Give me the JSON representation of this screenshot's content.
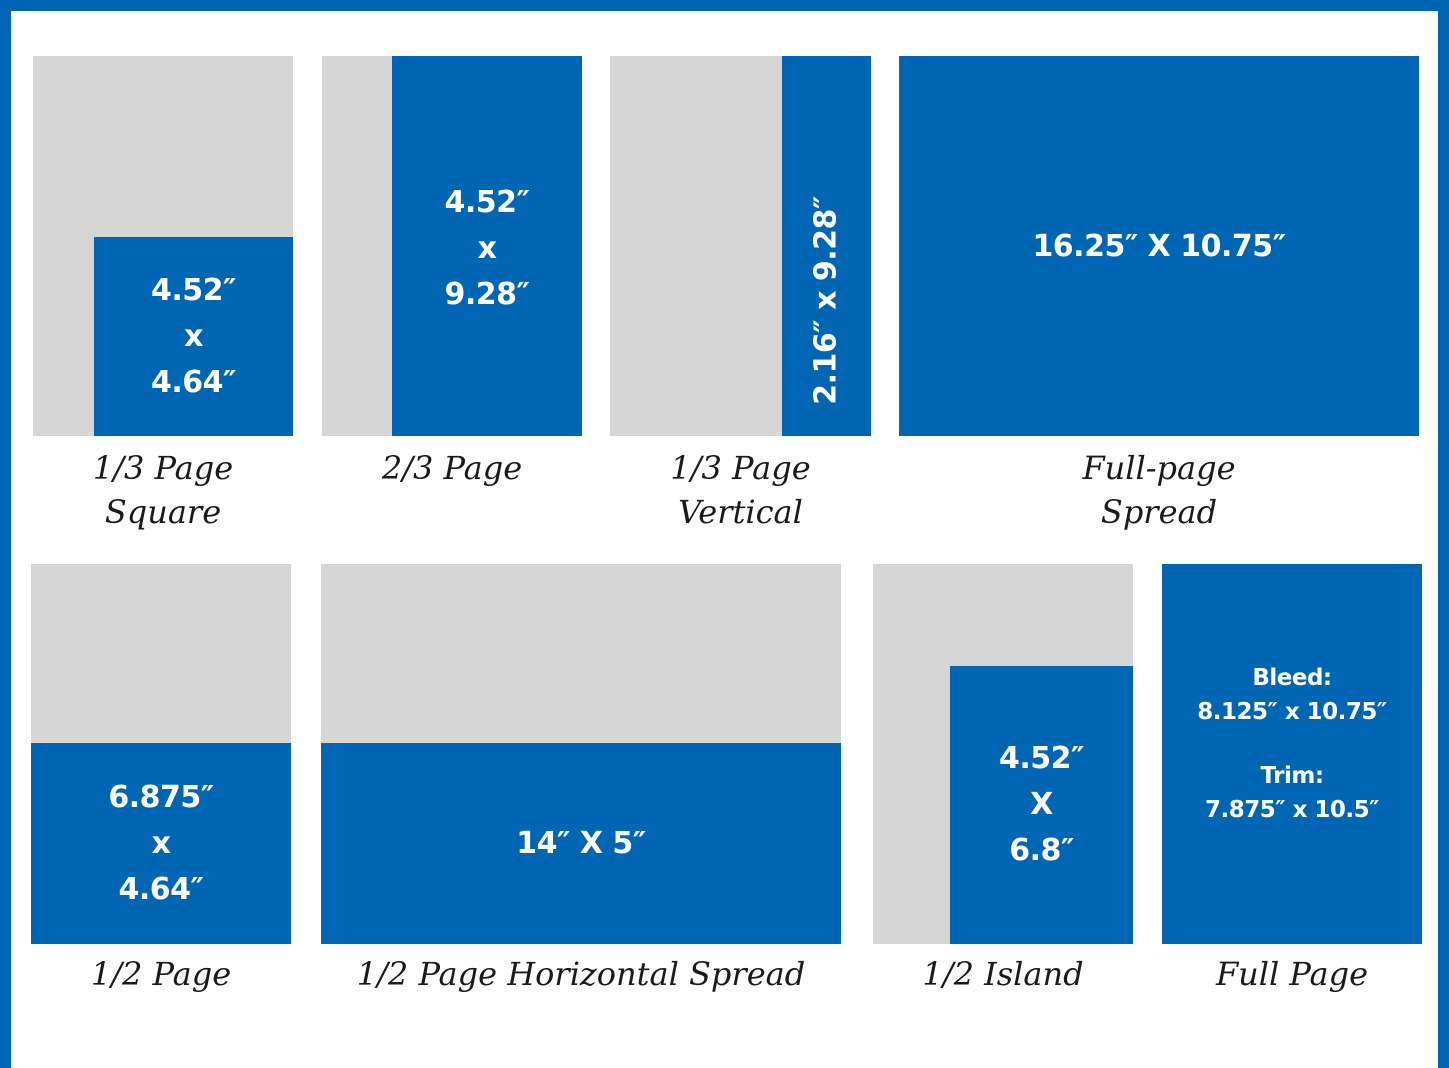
{
  "colors": {
    "accent": "#0066b3",
    "page": "#d6d6d6",
    "text": "#1a1a1a"
  },
  "ads": {
    "third_square": {
      "dim_w": "4.52″",
      "dim_x": "x",
      "dim_h": "4.64″",
      "caption_1": "1/3 Page",
      "caption_2": "Square"
    },
    "two_thirds": {
      "dim_w": "4.52″",
      "dim_x": "x",
      "dim_h": "9.28″",
      "caption_1": "2/3 Page"
    },
    "third_vertical": {
      "dim": "2.16″ x 9.28″",
      "caption_1": "1/3 Page",
      "caption_2": "Vertical"
    },
    "full_spread": {
      "dim": "16.25″ X 10.75″",
      "caption_1": "Full-page",
      "caption_2": "Spread"
    },
    "half_page": {
      "dim_w": "6.875″",
      "dim_x": "x",
      "dim_h": "4.64″",
      "caption_1": "1/2 Page"
    },
    "half_horizontal_spread": {
      "dim": "14″ X 5″",
      "caption_1": "1/2 Page Horizontal Spread"
    },
    "half_island": {
      "dim_w": "4.52″",
      "dim_x": "X",
      "dim_h": "6.8″",
      "caption_1": "1/2 Island"
    },
    "full_page": {
      "bleed_label": "Bleed:",
      "bleed_dim": "8.125″ x 10.75″",
      "trim_label": "Trim:",
      "trim_dim": "7.875″ x 10.5″",
      "caption_1": "Full Page"
    }
  }
}
